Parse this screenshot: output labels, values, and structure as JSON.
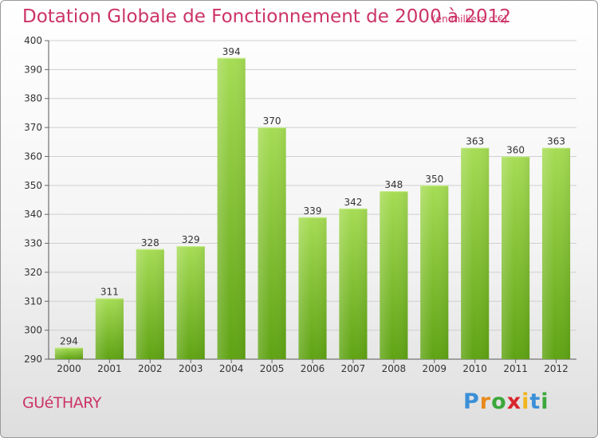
{
  "header": {
    "title": "Dotation Globale de Fonctionnement de 2000 à 2012",
    "unit": "(en milliers d'€)"
  },
  "footer": {
    "place": "GUéTHARY",
    "logo": {
      "letters": [
        "P",
        "r",
        "o",
        "x",
        "i",
        "t",
        "i"
      ],
      "colors": [
        "#3b8fd8",
        "#e88a1a",
        "#3aa83a",
        "#d9262c",
        "#f2b51b",
        "#3b8fd8",
        "#3aa83a"
      ]
    }
  },
  "colors": {
    "accent": "#cc3366",
    "bar_light": "#a6dc55",
    "bar_dark": "#5fa314",
    "grid": "#cfcfcf"
  },
  "chart_data": {
    "type": "bar",
    "title": "Dotation Globale de Fonctionnement de 2000 à 2012",
    "subtitle": "(en milliers d'€)",
    "categories": [
      "2000",
      "2001",
      "2002",
      "2003",
      "2004",
      "2005",
      "2006",
      "2007",
      "2008",
      "2009",
      "2010",
      "2011",
      "2012"
    ],
    "values": [
      294,
      311,
      328,
      329,
      394,
      370,
      339,
      342,
      348,
      350,
      363,
      360,
      363
    ],
    "ylim": [
      290,
      400
    ],
    "yticks": [
      290,
      300,
      310,
      320,
      330,
      340,
      350,
      360,
      370,
      380,
      390,
      400
    ],
    "grid": true,
    "legend": "none"
  }
}
